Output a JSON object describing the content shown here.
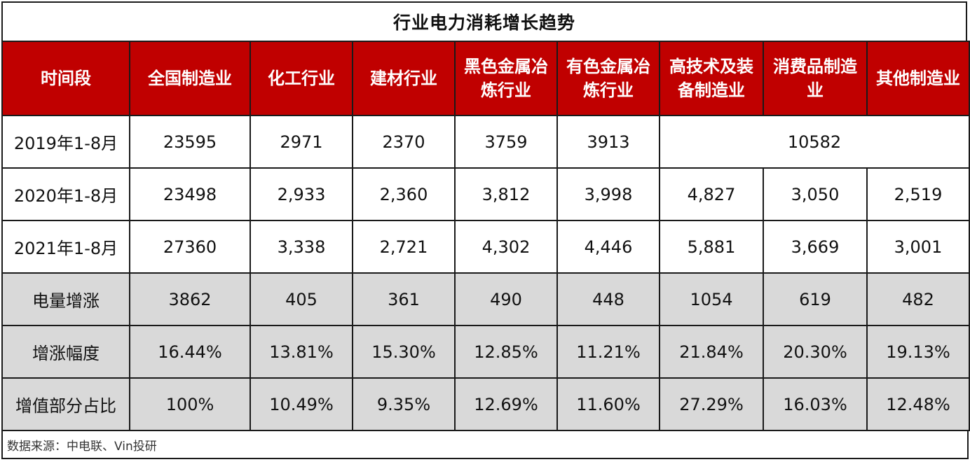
{
  "title": "行业电力消耗增长趋势",
  "colors": {
    "header_bg": "#c00000",
    "header_text": "#ffffff",
    "grey_row_bg": "#d9d9d9",
    "border": "#1a1a1a"
  },
  "table": {
    "headers": [
      "时间段",
      "全国制造业",
      "化工行业",
      "建材行业",
      "黑色金属冶炼行业",
      "有色金属冶炼行业",
      "高技术及装备制造业",
      "消费品制造业",
      "其他制造业"
    ],
    "row_2019": {
      "label": "2019年1-8月",
      "values": [
        "23595",
        "2971",
        "2370",
        "3759",
        "3913"
      ],
      "merged_value": "10582"
    },
    "rows": [
      {
        "label": "2020年1-8月",
        "values": [
          "23498",
          "2,933",
          "2,360",
          "3,812",
          "3,998",
          "4,827",
          "3,050",
          "2,519"
        ]
      },
      {
        "label": "2021年1-8月",
        "values": [
          "27360",
          "3,338",
          "2,721",
          "4,302",
          "4,446",
          "5,881",
          "3,669",
          "3,001"
        ]
      }
    ],
    "summary_rows": [
      {
        "label": "电量增涨",
        "values": [
          "3862",
          "405",
          "361",
          "490",
          "448",
          "1054",
          "619",
          "482"
        ]
      },
      {
        "label": "增涨幅度",
        "values": [
          "16.44%",
          "13.81%",
          "15.30%",
          "12.85%",
          "11.21%",
          "21.84%",
          "20.30%",
          "19.13%"
        ]
      },
      {
        "label": "增值部分占比",
        "values": [
          "100%",
          "10.49%",
          "9.35%",
          "12.69%",
          "11.60%",
          "27.29%",
          "16.03%",
          "12.48%"
        ]
      }
    ]
  },
  "footer": {
    "source": "数据来源：中电联、Vin投研"
  }
}
